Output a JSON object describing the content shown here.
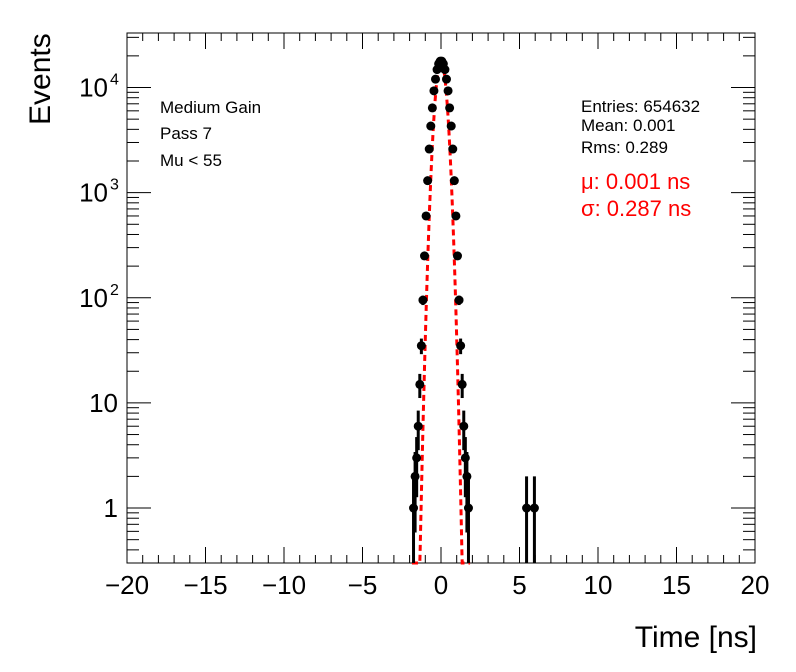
{
  "chart_data": {
    "type": "scatter",
    "xlabel": "Time [ns]",
    "ylabel": "Events",
    "xlim": [
      -20,
      20
    ],
    "ylim": [
      0.3,
      33000
    ],
    "yscale": "log",
    "x_ticks": [
      {
        "value": -20,
        "label": "−20"
      },
      {
        "value": -15,
        "label": "−15"
      },
      {
        "value": -10,
        "label": "−10"
      },
      {
        "value": -5,
        "label": "−5"
      },
      {
        "value": 0,
        "label": "0"
      },
      {
        "value": 5,
        "label": "5"
      },
      {
        "value": 10,
        "label": "10"
      },
      {
        "value": 15,
        "label": "15"
      },
      {
        "value": 20,
        "label": "20"
      }
    ],
    "y_ticks": [
      {
        "value": 1,
        "base": "1",
        "exp": ""
      },
      {
        "value": 10,
        "base": "10",
        "exp": ""
      },
      {
        "value": 100,
        "base": "10",
        "exp": "2"
      },
      {
        "value": 1000,
        "base": "10",
        "exp": "3"
      },
      {
        "value": 10000,
        "base": "10",
        "exp": "4"
      }
    ],
    "annotations_left": [
      "Medium Gain",
      "Pass 7",
      "Mu < 55"
    ],
    "stats": [
      "Entries: 654632",
      "Mean: 0.001",
      "Rms: 0.289"
    ],
    "fit_text": [
      "μ: 0.001 ns",
      "σ: 0.287 ns"
    ],
    "fit": {
      "mu": 0.001,
      "sigma": 0.287,
      "amplitude": 17800,
      "color": "#ff0000",
      "style": "dashed"
    },
    "bin_width": 0.1,
    "series": [
      {
        "marker": "circle",
        "color": "#000000",
        "points": [
          {
            "x": -1.75,
            "y": 1
          },
          {
            "x": -1.65,
            "y": 2
          },
          {
            "x": -1.55,
            "y": 3
          },
          {
            "x": -1.45,
            "y": 6
          },
          {
            "x": -1.35,
            "y": 15
          },
          {
            "x": -1.25,
            "y": 35
          },
          {
            "x": -1.15,
            "y": 95
          },
          {
            "x": -1.05,
            "y": 250
          },
          {
            "x": -0.95,
            "y": 600
          },
          {
            "x": -0.85,
            "y": 1300
          },
          {
            "x": -0.75,
            "y": 2600
          },
          {
            "x": -0.65,
            "y": 4300
          },
          {
            "x": -0.55,
            "y": 6400
          },
          {
            "x": -0.45,
            "y": 9300
          },
          {
            "x": -0.35,
            "y": 12000
          },
          {
            "x": -0.25,
            "y": 14800
          },
          {
            "x": -0.15,
            "y": 16800
          },
          {
            "x": -0.05,
            "y": 17800
          },
          {
            "x": 0.05,
            "y": 17800
          },
          {
            "x": 0.15,
            "y": 16800
          },
          {
            "x": 0.25,
            "y": 14800
          },
          {
            "x": 0.35,
            "y": 12000
          },
          {
            "x": 0.45,
            "y": 9300
          },
          {
            "x": 0.55,
            "y": 6400
          },
          {
            "x": 0.65,
            "y": 4300
          },
          {
            "x": 0.75,
            "y": 2600
          },
          {
            "x": 0.85,
            "y": 1300
          },
          {
            "x": 0.95,
            "y": 600
          },
          {
            "x": 1.05,
            "y": 250
          },
          {
            "x": 1.15,
            "y": 95
          },
          {
            "x": 1.25,
            "y": 35
          },
          {
            "x": 1.35,
            "y": 15
          },
          {
            "x": 1.45,
            "y": 6
          },
          {
            "x": 1.55,
            "y": 3
          },
          {
            "x": 1.65,
            "y": 2
          },
          {
            "x": 1.75,
            "y": 1
          },
          {
            "x": 5.45,
            "y": 1
          },
          {
            "x": 5.95,
            "y": 1
          }
        ]
      }
    ]
  }
}
